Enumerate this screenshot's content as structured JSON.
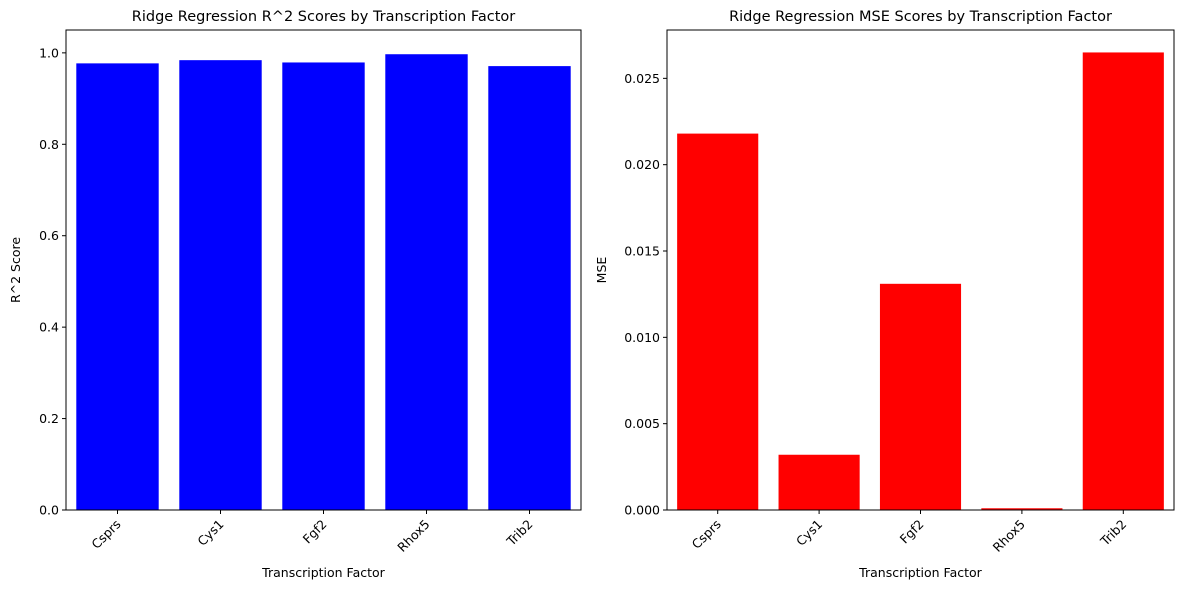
{
  "chart_data": [
    {
      "type": "bar",
      "title": "Ridge Regression R^2 Scores by Transcription Factor",
      "xlabel": "Transcription Factor",
      "ylabel": "R^2 Score",
      "categories": [
        "Csprs",
        "Cys1",
        "Fgf2",
        "Rhox5",
        "Trib2"
      ],
      "values": [
        0.977,
        0.984,
        0.979,
        0.997,
        0.971
      ],
      "ylim": [
        0,
        1.05
      ],
      "yticks": [
        0.0,
        0.2,
        0.4,
        0.6,
        0.8,
        1.0
      ],
      "ytick_labels": [
        "0.0",
        "0.2",
        "0.4",
        "0.6",
        "0.8",
        "1.0"
      ],
      "color": "#0000ff",
      "grid": false
    },
    {
      "type": "bar",
      "title": "Ridge Regression MSE Scores by Transcription Factor",
      "xlabel": "Transcription Factor",
      "ylabel": "MSE",
      "categories": [
        "Csprs",
        "Cys1",
        "Fgf2",
        "Rhox5",
        "Trib2"
      ],
      "values": [
        0.0218,
        0.0032,
        0.0131,
        0.0001,
        0.0265
      ],
      "ylim": [
        0,
        0.0278
      ],
      "yticks": [
        0.0,
        0.005,
        0.01,
        0.015,
        0.02,
        0.025
      ],
      "ytick_labels": [
        "0.000",
        "0.005",
        "0.010",
        "0.015",
        "0.020",
        "0.025"
      ],
      "color": "#ff0000",
      "grid": false
    }
  ]
}
